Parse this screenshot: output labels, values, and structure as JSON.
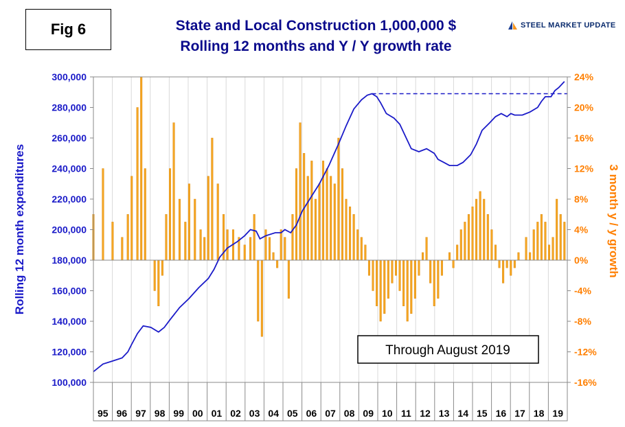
{
  "figure_label": "Fig 6",
  "title_line1": "State and Local Construction 1,000,000 $",
  "title_line2": "Rolling 12 months and Y / Y growth rate",
  "brand": {
    "text": "STEEL MARKET UPDATE",
    "icon": "sail-logo-icon",
    "colors": [
      "#1c3f94",
      "#f7941d"
    ]
  },
  "annotation": "Through August 2019",
  "colors": {
    "line": "#1a1ac8",
    "bars": "#f5a623",
    "bar_outline": "#d98200",
    "left_axis": "#1a1ac8",
    "right_axis": "#ff7f00",
    "reference_line": "#1a1ac8"
  },
  "chart_data": {
    "type": "bar+line",
    "left_axis": {
      "label": "Rolling 12 month expenditures",
      "range": [
        100000,
        300000
      ],
      "ticks": [
        "100,000",
        "120,000",
        "140,000",
        "160,000",
        "180,000",
        "200,000",
        "220,000",
        "240,000",
        "260,000",
        "280,000",
        "300,000"
      ]
    },
    "right_axis": {
      "label": "3 month y / y growth",
      "range": [
        -16,
        24
      ],
      "ticks": [
        "-16%",
        "-12%",
        "-8%",
        "-4%",
        "0%",
        "4%",
        "8%",
        "12%",
        "16%",
        "20%",
        "24%"
      ]
    },
    "x_axis": {
      "categories": [
        "95",
        "96",
        "97",
        "98",
        "99",
        "00",
        "01",
        "02",
        "03",
        "04",
        "05",
        "06",
        "07",
        "08",
        "09",
        "10",
        "11",
        "12",
        "13",
        "14",
        "15",
        "16",
        "17",
        "18",
        "19"
      ],
      "start": 1995.0,
      "end": 2019.75
    },
    "series": [
      {
        "name": "Rolling 12 month expenditures",
        "kind": "line",
        "axis": "left",
        "points": [
          [
            1995.0,
            107000
          ],
          [
            1995.5,
            112000
          ],
          [
            1996.0,
            114000
          ],
          [
            1996.5,
            116000
          ],
          [
            1996.8,
            120000
          ],
          [
            1997.0,
            125000
          ],
          [
            1997.3,
            132000
          ],
          [
            1997.6,
            137000
          ],
          [
            1998.0,
            136000
          ],
          [
            1998.4,
            133000
          ],
          [
            1998.7,
            136000
          ],
          [
            1999.0,
            141000
          ],
          [
            1999.5,
            149000
          ],
          [
            2000.0,
            155000
          ],
          [
            2000.5,
            162000
          ],
          [
            2001.0,
            168000
          ],
          [
            2001.3,
            174000
          ],
          [
            2001.6,
            182000
          ],
          [
            2002.0,
            188000
          ],
          [
            2002.5,
            192000
          ],
          [
            2002.9,
            196000
          ],
          [
            2003.2,
            200000
          ],
          [
            2003.5,
            199000
          ],
          [
            2003.7,
            194000
          ],
          [
            2004.0,
            196000
          ],
          [
            2004.5,
            198000
          ],
          [
            2004.8,
            198000
          ],
          [
            2005.0,
            200000
          ],
          [
            2005.3,
            198000
          ],
          [
            2005.6,
            203000
          ],
          [
            2005.9,
            212000
          ],
          [
            2006.3,
            220000
          ],
          [
            2006.8,
            230000
          ],
          [
            2007.3,
            242000
          ],
          [
            2007.8,
            256000
          ],
          [
            2008.2,
            268000
          ],
          [
            2008.6,
            279000
          ],
          [
            2009.0,
            285000
          ],
          [
            2009.3,
            288000
          ],
          [
            2009.55,
            289000
          ],
          [
            2009.8,
            287000
          ],
          [
            2010.0,
            283000
          ],
          [
            2010.3,
            276000
          ],
          [
            2010.7,
            273000
          ],
          [
            2011.0,
            269000
          ],
          [
            2011.3,
            261000
          ],
          [
            2011.6,
            253000
          ],
          [
            2012.0,
            251000
          ],
          [
            2012.4,
            253000
          ],
          [
            2012.8,
            250000
          ],
          [
            2013.0,
            246000
          ],
          [
            2013.3,
            244000
          ],
          [
            2013.6,
            242000
          ],
          [
            2014.0,
            242000
          ],
          [
            2014.3,
            244000
          ],
          [
            2014.7,
            249000
          ],
          [
            2015.0,
            256000
          ],
          [
            2015.3,
            265000
          ],
          [
            2015.7,
            270000
          ],
          [
            2016.0,
            274000
          ],
          [
            2016.3,
            276000
          ],
          [
            2016.6,
            274000
          ],
          [
            2016.8,
            276000
          ],
          [
            2017.0,
            275000
          ],
          [
            2017.4,
            275000
          ],
          [
            2017.8,
            277000
          ],
          [
            2018.2,
            280000
          ],
          [
            2018.4,
            284000
          ],
          [
            2018.6,
            287000
          ],
          [
            2018.9,
            287000
          ],
          [
            2019.1,
            291000
          ],
          [
            2019.3,
            293000
          ],
          [
            2019.6,
            297000
          ]
        ]
      },
      {
        "name": "3 month y / y growth",
        "kind": "bar",
        "axis": "right",
        "points": [
          [
            1995.0,
            6
          ],
          [
            1995.5,
            12
          ],
          [
            1996.0,
            5
          ],
          [
            1996.5,
            3
          ],
          [
            1996.8,
            6
          ],
          [
            1997.0,
            11
          ],
          [
            1997.3,
            20
          ],
          [
            1997.5,
            24
          ],
          [
            1997.7,
            12
          ],
          [
            1998.0,
            0
          ],
          [
            1998.2,
            -4
          ],
          [
            1998.4,
            -6
          ],
          [
            1998.6,
            -2
          ],
          [
            1998.8,
            6
          ],
          [
            1999.0,
            12
          ],
          [
            1999.2,
            18
          ],
          [
            1999.5,
            8
          ],
          [
            1999.8,
            5
          ],
          [
            2000.0,
            10
          ],
          [
            2000.3,
            8
          ],
          [
            2000.6,
            4
          ],
          [
            2000.8,
            3
          ],
          [
            2001.0,
            11
          ],
          [
            2001.2,
            16
          ],
          [
            2001.5,
            10
          ],
          [
            2001.8,
            6
          ],
          [
            2002.0,
            4
          ],
          [
            2002.3,
            4
          ],
          [
            2002.6,
            3
          ],
          [
            2002.9,
            2
          ],
          [
            2003.2,
            3
          ],
          [
            2003.4,
            6
          ],
          [
            2003.6,
            -8
          ],
          [
            2003.8,
            -10
          ],
          [
            2004.0,
            4
          ],
          [
            2004.2,
            3
          ],
          [
            2004.4,
            1
          ],
          [
            2004.6,
            -1
          ],
          [
            2004.8,
            4
          ],
          [
            2005.0,
            3
          ],
          [
            2005.2,
            -5
          ],
          [
            2005.4,
            6
          ],
          [
            2005.6,
            12
          ],
          [
            2005.8,
            18
          ],
          [
            2006.0,
            14
          ],
          [
            2006.2,
            11
          ],
          [
            2006.4,
            13
          ],
          [
            2006.6,
            8
          ],
          [
            2006.8,
            10
          ],
          [
            2007.0,
            13
          ],
          [
            2007.2,
            12
          ],
          [
            2007.4,
            11
          ],
          [
            2007.6,
            10
          ],
          [
            2007.8,
            16
          ],
          [
            2008.0,
            12
          ],
          [
            2008.2,
            8
          ],
          [
            2008.4,
            7
          ],
          [
            2008.6,
            6
          ],
          [
            2008.8,
            4
          ],
          [
            2009.0,
            3
          ],
          [
            2009.2,
            2
          ],
          [
            2009.4,
            -2
          ],
          [
            2009.6,
            -4
          ],
          [
            2009.8,
            -6
          ],
          [
            2010.0,
            -8
          ],
          [
            2010.2,
            -7
          ],
          [
            2010.4,
            -5
          ],
          [
            2010.6,
            -3
          ],
          [
            2010.8,
            -2
          ],
          [
            2011.0,
            -4
          ],
          [
            2011.2,
            -6
          ],
          [
            2011.4,
            -8
          ],
          [
            2011.6,
            -7
          ],
          [
            2011.8,
            -5
          ],
          [
            2012.0,
            -2
          ],
          [
            2012.2,
            1
          ],
          [
            2012.4,
            3
          ],
          [
            2012.6,
            -3
          ],
          [
            2012.8,
            -6
          ],
          [
            2013.0,
            -5
          ],
          [
            2013.2,
            -2
          ],
          [
            2013.4,
            0
          ],
          [
            2013.6,
            1
          ],
          [
            2013.8,
            -1
          ],
          [
            2014.0,
            2
          ],
          [
            2014.2,
            4
          ],
          [
            2014.4,
            5
          ],
          [
            2014.6,
            6
          ],
          [
            2014.8,
            7
          ],
          [
            2015.0,
            8
          ],
          [
            2015.2,
            9
          ],
          [
            2015.4,
            8
          ],
          [
            2015.6,
            6
          ],
          [
            2015.8,
            4
          ],
          [
            2016.0,
            2
          ],
          [
            2016.2,
            -1
          ],
          [
            2016.4,
            -3
          ],
          [
            2016.6,
            -1
          ],
          [
            2016.8,
            -2
          ],
          [
            2017.0,
            -1
          ],
          [
            2017.2,
            1
          ],
          [
            2017.4,
            0
          ],
          [
            2017.6,
            3
          ],
          [
            2017.8,
            1
          ],
          [
            2018.0,
            4
          ],
          [
            2018.2,
            5
          ],
          [
            2018.4,
            6
          ],
          [
            2018.6,
            5
          ],
          [
            2018.8,
            2
          ],
          [
            2019.0,
            3
          ],
          [
            2019.2,
            8
          ],
          [
            2019.4,
            6
          ],
          [
            2019.6,
            5
          ]
        ]
      }
    ],
    "reference_line": {
      "style": "dashed",
      "axis": "left",
      "value": 289000,
      "from_x": 2009.55,
      "to_x": 2019.75
    }
  }
}
